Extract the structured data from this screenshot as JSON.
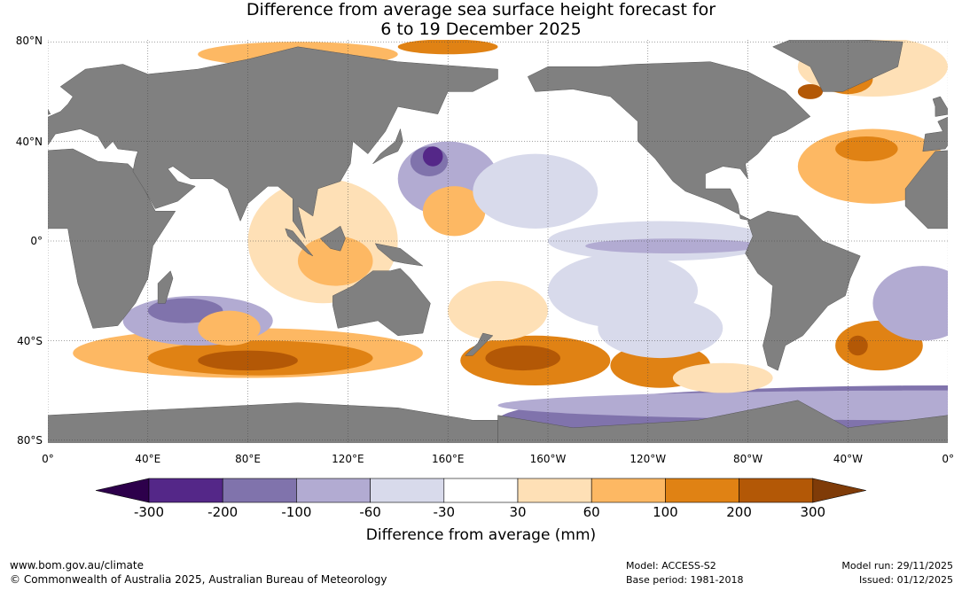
{
  "title": {
    "line1": "Difference from average sea surface height forecast for",
    "line2": "6 to 19 December 2025"
  },
  "lat_labels": [
    "80°N",
    "40°N",
    "0°",
    "40°S",
    "80°S"
  ],
  "lon_labels": [
    "0°",
    "40°E",
    "80°E",
    "120°E",
    "160°E",
    "160°W",
    "120°W",
    "80°W",
    "40°W",
    "0°"
  ],
  "colorbar": {
    "label": "Difference from average (mm)",
    "ticks": [
      "-300",
      "-200",
      "-100",
      "-60",
      "-30",
      "30",
      "60",
      "100",
      "200",
      "300"
    ],
    "colors": [
      "#2d004b",
      "#542788",
      "#8073ac",
      "#b2abd2",
      "#d8daeb",
      "#ffffff",
      "#fee0b6",
      "#fdb863",
      "#e08214",
      "#b35806",
      "#7f3b08"
    ]
  },
  "land_color": "#808080",
  "footer": {
    "url": "www.bom.gov.au/climate",
    "copyright": "© Commonwealth of Australia 2025, Australian Bureau of Meteorology",
    "model": "Model: ACCESS-S2",
    "base_period": "Base period: 1981-2018",
    "model_run": "Model run: 29/11/2025",
    "issued": "Issued: 01/12/2025"
  }
}
